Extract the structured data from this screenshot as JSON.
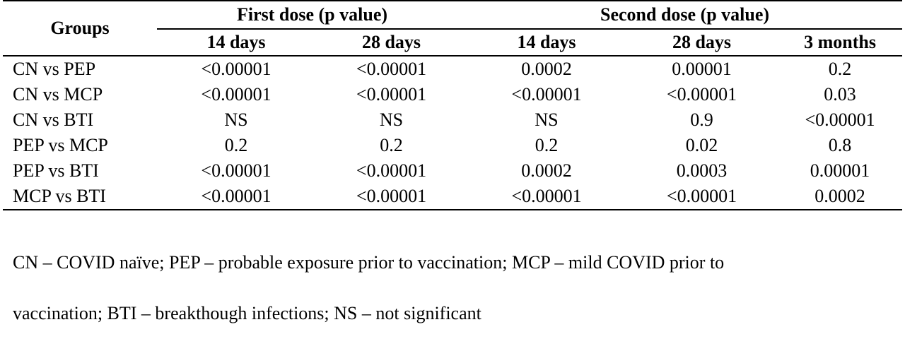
{
  "table": {
    "groups_header": "Groups",
    "first_dose_header": "First dose (p value)",
    "second_dose_header": "Second dose (p value)",
    "sub_headers": [
      "14 days",
      "28 days",
      "14 days",
      "28 days",
      "3 months"
    ],
    "rows": [
      {
        "group": "CN vs PEP",
        "values": [
          "<0.00001",
          "<0.00001",
          "0.0002",
          "0.00001",
          "0.2"
        ]
      },
      {
        "group": "CN vs MCP",
        "values": [
          "<0.00001",
          "<0.00001",
          "<0.00001",
          "<0.00001",
          "0.03"
        ]
      },
      {
        "group": "CN vs BTI",
        "values": [
          "NS",
          "NS",
          "NS",
          "0.9",
          "<0.00001"
        ]
      },
      {
        "group": "PEP vs MCP",
        "values": [
          "0.2",
          "0.2",
          "0.2",
          "0.02",
          "0.8"
        ]
      },
      {
        "group": "PEP vs BTI",
        "values": [
          "<0.00001",
          "<0.00001",
          "0.0002",
          "0.0003",
          "0.00001"
        ]
      },
      {
        "group": "MCP vs BTI",
        "values": [
          "<0.00001",
          "<0.00001",
          "<0.00001",
          "<0.00001",
          "0.0002"
        ]
      }
    ]
  },
  "footnote": {
    "line1": "CN – COVID naïve; PEP – probable exposure prior to vaccination; MCP – mild COVID prior to",
    "line2": "vaccination; BTI – breakthough infections; NS – not significant"
  }
}
